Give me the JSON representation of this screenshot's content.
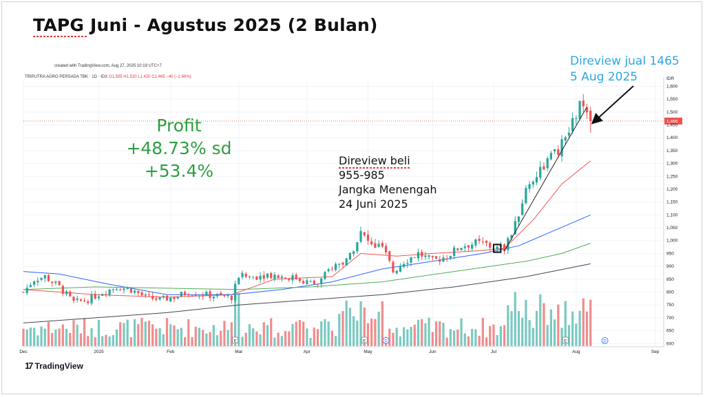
{
  "slide": {
    "title": "TAPG Juni - Agustus 2025 (2 Bulan)"
  },
  "chart_header": {
    "created_text": "created with TradingView.com, Aug 27, 2025 10:19 UTC+7",
    "symbol_text": "TRIPUTRA AGRO PERSADA TBK · 1D · IDX",
    "ohlc_text": "O1,505 H1,520 L1,420 C1,465 −40 (−2.66%)"
  },
  "branding": {
    "logo_mark": "17",
    "logo_text": "TradingView"
  },
  "annotations": {
    "profit": [
      "Profit",
      "+48.73% sd +53.4%"
    ],
    "buy": [
      "Direview beli",
      "955-985",
      "Jangka Menengah",
      "24 Juni 2025"
    ],
    "sell": [
      "Direview jual 1465",
      "5 Aug 2025"
    ]
  },
  "colors": {
    "up": "#26a69a",
    "down": "#ef5350",
    "ma_short": "#ef5350",
    "ma_mid": "#2962ff",
    "ma_long": "#4caf50",
    "ma_longest": "#434651",
    "price_line": "#ef5350",
    "annotation_profit": "#2e9e3f",
    "annotation_sell": "#29a8e0"
  },
  "chart_data": {
    "type": "candlestick",
    "currency_label": "IDR",
    "y_ticks": [
      600,
      650,
      700,
      750,
      800,
      850,
      900,
      950,
      1000,
      1050,
      1100,
      1150,
      1200,
      1250,
      1300,
      1350,
      1400,
      1450,
      1500,
      1550,
      1600
    ],
    "y_tick_labels": [
      "600",
      "650",
      "700",
      "750",
      "800",
      "850",
      "900",
      "950",
      "1,000",
      "1,050",
      "1,100",
      "1,150",
      "1,200",
      "1,250",
      "1,300",
      "1,350",
      "1,400",
      "1,450",
      "1,500",
      "1,550",
      "1,600"
    ],
    "ylim": [
      590,
      1620
    ],
    "last_price": 1465,
    "last_price_label": "1,465",
    "x_labels": [
      {
        "label": "Dec",
        "day": 0
      },
      {
        "label": "2025",
        "day": 21
      },
      {
        "label": "Feb",
        "day": 41
      },
      {
        "label": "Mar",
        "day": 60
      },
      {
        "label": "Apr",
        "day": 79
      },
      {
        "label": "May",
        "day": 96
      },
      {
        "label": "Jun",
        "day": 114
      },
      {
        "label": "Jul",
        "day": 131
      },
      {
        "label": "Aug",
        "day": 154
      },
      {
        "label": "Sep",
        "day": 176
      }
    ],
    "last_day": 158,
    "axis_end_day": 178,
    "event_markers": [
      {
        "label": "E",
        "day": 59
      },
      {
        "label": "E",
        "day": 95
      },
      {
        "label": "D",
        "day": 101
      },
      {
        "label": "E",
        "day": 151
      },
      {
        "label": "D",
        "day": 162
      }
    ],
    "key_points": [
      [
        0,
        800
      ],
      [
        3,
        850
      ],
      [
        6,
        860
      ],
      [
        10,
        820
      ],
      [
        14,
        760
      ],
      [
        18,
        770
      ],
      [
        22,
        800
      ],
      [
        26,
        820
      ],
      [
        30,
        810
      ],
      [
        34,
        780
      ],
      [
        38,
        770
      ],
      [
        42,
        780
      ],
      [
        46,
        800
      ],
      [
        50,
        790
      ],
      [
        54,
        785
      ],
      [
        58,
        780
      ],
      [
        60,
        860
      ],
      [
        64,
        860
      ],
      [
        68,
        870
      ],
      [
        72,
        860
      ],
      [
        76,
        855
      ],
      [
        80,
        835
      ],
      [
        82,
        830
      ],
      [
        86,
        900
      ],
      [
        90,
        920
      ],
      [
        94,
        1030
      ],
      [
        97,
        980
      ],
      [
        100,
        975
      ],
      [
        103,
        880
      ],
      [
        106,
        920
      ],
      [
        110,
        950
      ],
      [
        114,
        920
      ],
      [
        118,
        940
      ],
      [
        122,
        980
      ],
      [
        126,
        990
      ],
      [
        129,
        985
      ],
      [
        131,
        970
      ],
      [
        134,
        970
      ],
      [
        137,
        1060
      ],
      [
        140,
        1200
      ],
      [
        143,
        1260
      ],
      [
        146,
        1310
      ],
      [
        149,
        1350
      ],
      [
        152,
        1420
      ],
      [
        154,
        1490
      ],
      [
        155,
        1530
      ],
      [
        156,
        1505
      ],
      [
        158,
        1465
      ]
    ],
    "moving_averages": [
      {
        "key": "ma_short",
        "points": [
          [
            0,
            810
          ],
          [
            20,
            790
          ],
          [
            40,
            780
          ],
          [
            58,
            790
          ],
          [
            70,
            850
          ],
          [
            86,
            860
          ],
          [
            94,
            950
          ],
          [
            104,
            940
          ],
          [
            114,
            950
          ],
          [
            126,
            960
          ],
          [
            134,
            970
          ],
          [
            142,
            1080
          ],
          [
            150,
            1220
          ],
          [
            158,
            1310
          ]
        ]
      },
      {
        "key": "ma_mid",
        "points": [
          [
            0,
            880
          ],
          [
            10,
            870
          ],
          [
            24,
            830
          ],
          [
            40,
            790
          ],
          [
            58,
            790
          ],
          [
            72,
            810
          ],
          [
            86,
            840
          ],
          [
            100,
            890
          ],
          [
            114,
            920
          ],
          [
            128,
            950
          ],
          [
            138,
            980
          ],
          [
            148,
            1040
          ],
          [
            158,
            1100
          ]
        ]
      },
      {
        "key": "ma_long",
        "points": [
          [
            0,
            810
          ],
          [
            20,
            820
          ],
          [
            40,
            815
          ],
          [
            60,
            810
          ],
          [
            80,
            820
          ],
          [
            100,
            840
          ],
          [
            120,
            880
          ],
          [
            140,
            920
          ],
          [
            150,
            950
          ],
          [
            158,
            990
          ]
        ]
      },
      {
        "key": "ma_longest",
        "points": [
          [
            0,
            680
          ],
          [
            20,
            700
          ],
          [
            40,
            720
          ],
          [
            60,
            750
          ],
          [
            80,
            770
          ],
          [
            100,
            790
          ],
          [
            120,
            820
          ],
          [
            140,
            860
          ],
          [
            158,
            910
          ]
        ]
      }
    ],
    "trendline": [
      [
        134,
        960
      ],
      [
        157,
        1520
      ]
    ],
    "buy_box": {
      "day_start": 131,
      "day_end": 133,
      "low": 955,
      "high": 985
    }
  }
}
